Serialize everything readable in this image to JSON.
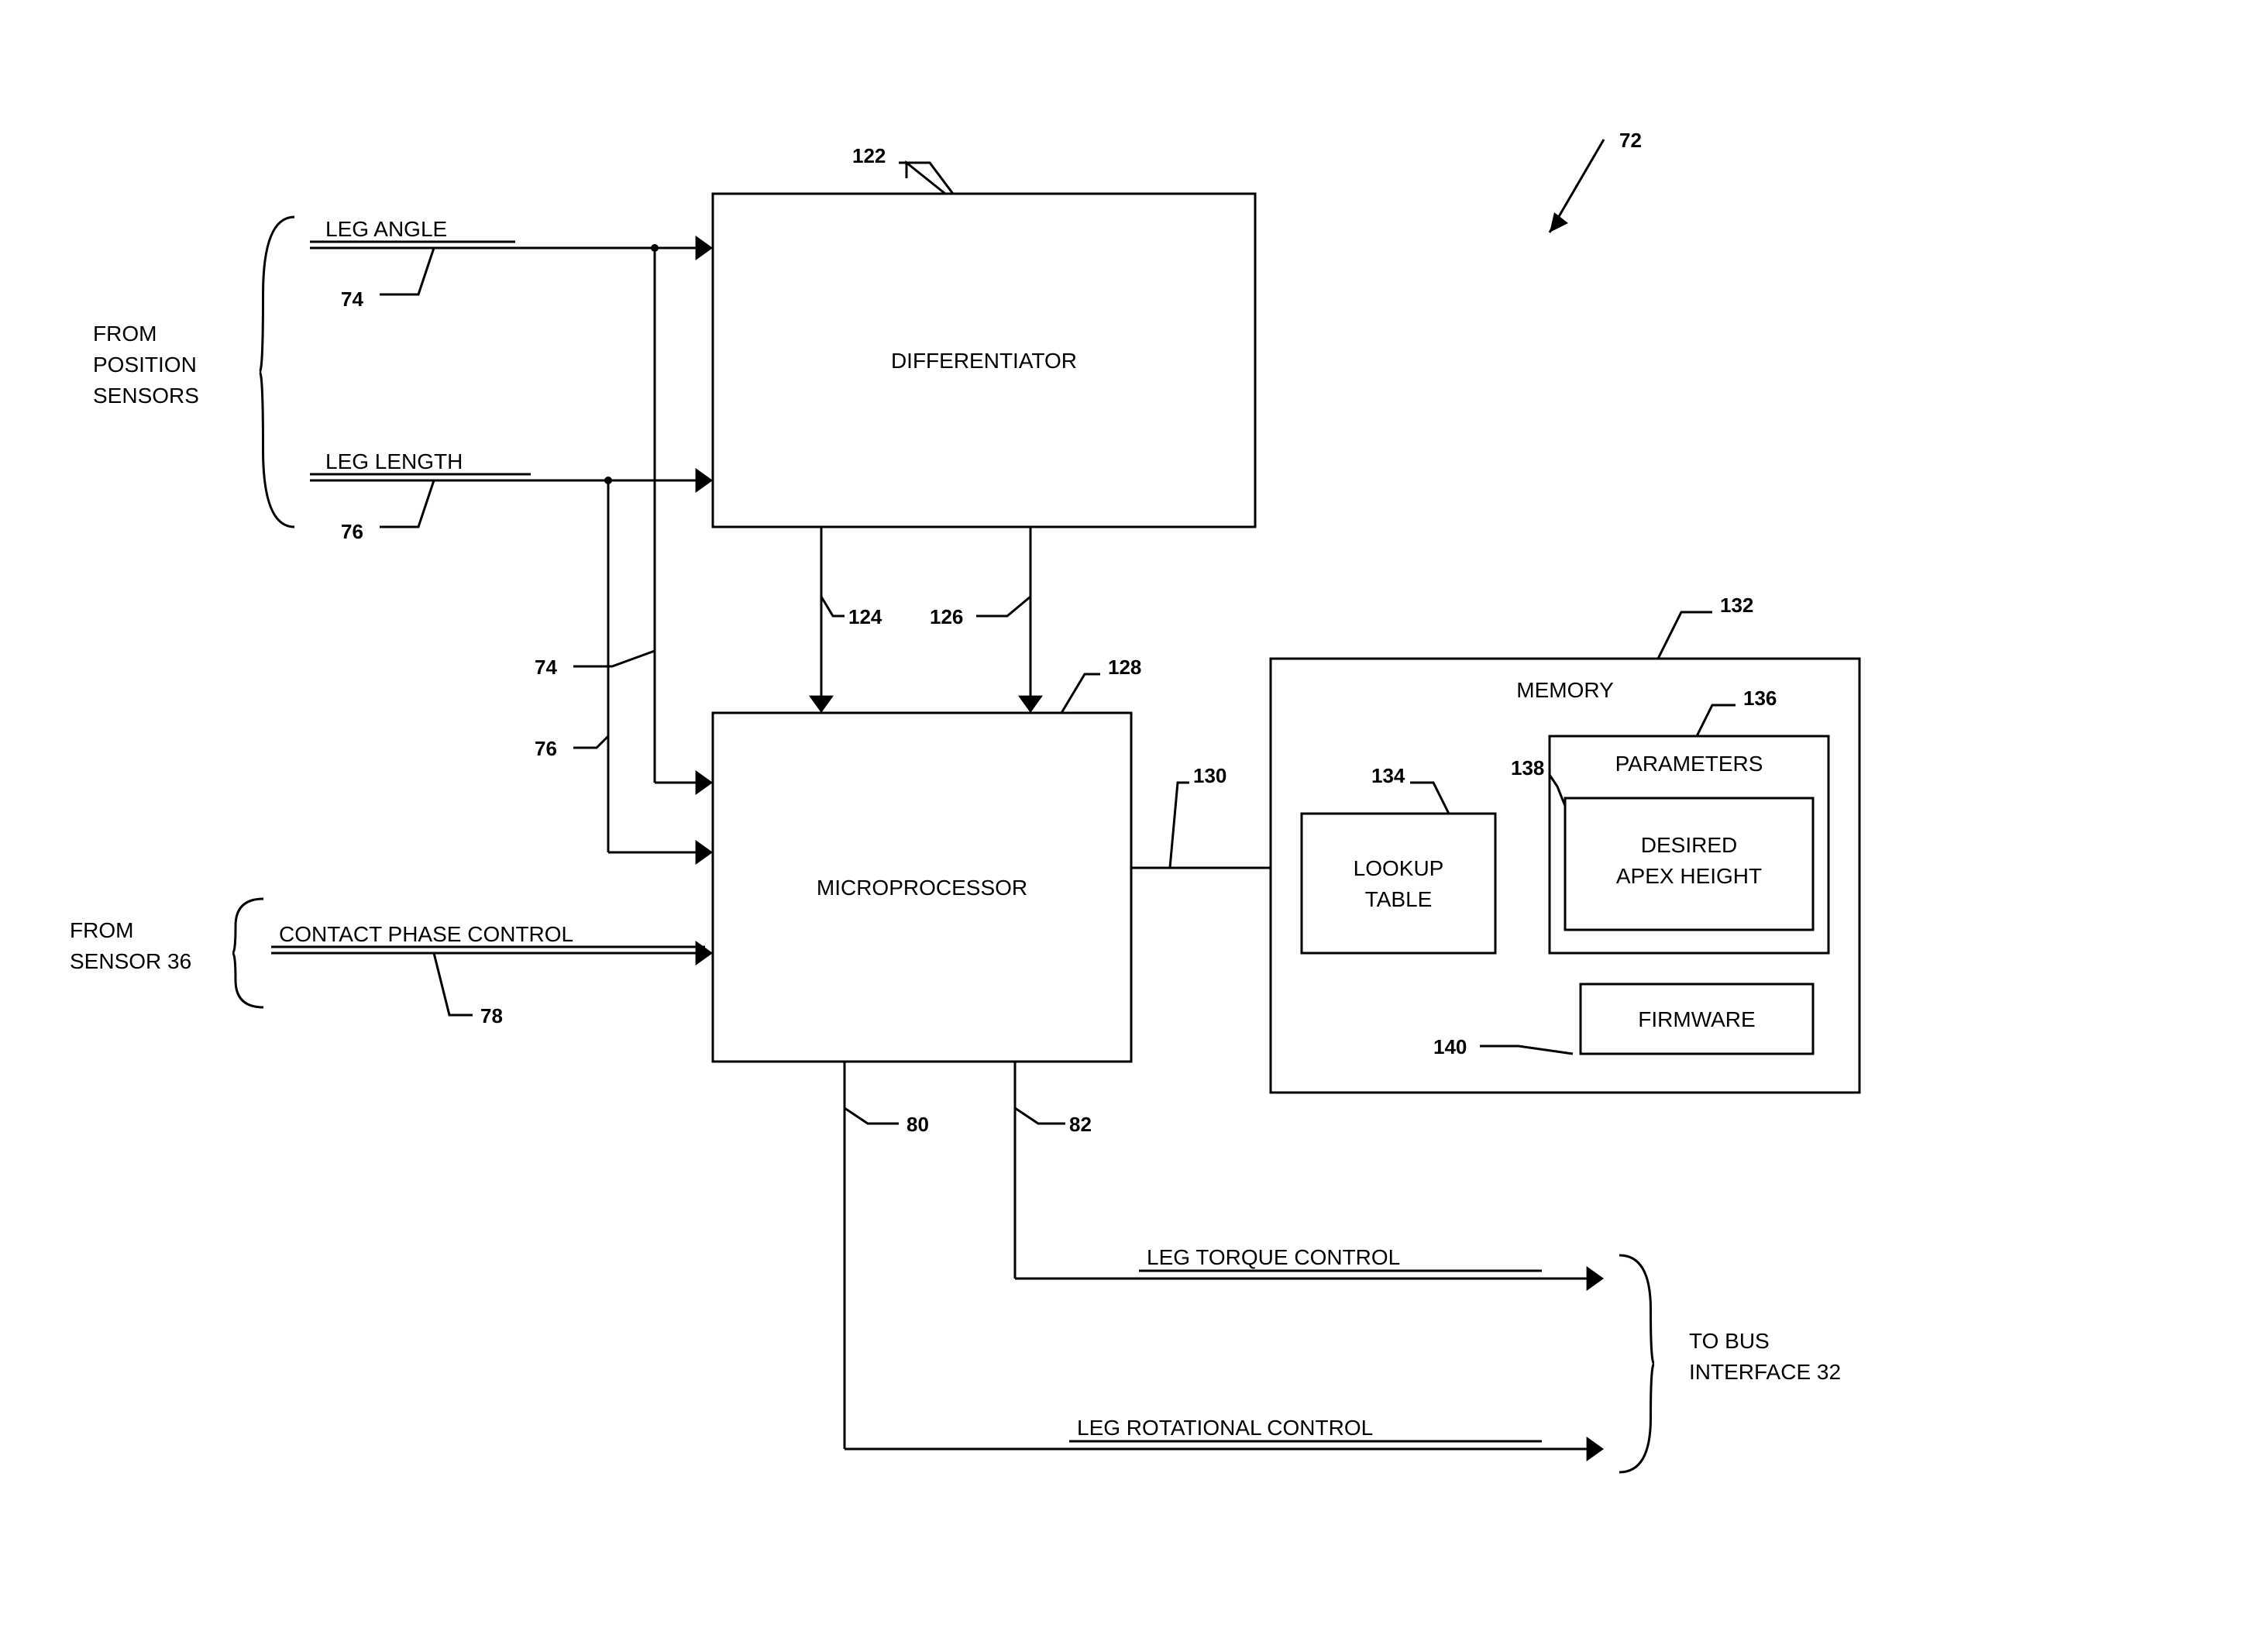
{
  "figure_ref": "72",
  "inputs_left": {
    "group1_label_line1": "FROM",
    "group1_label_line2": "POSITION",
    "group1_label_line3": "SENSORS",
    "signal1": "LEG ANGLE",
    "signal1_ref": "74",
    "signal2": "LEG LENGTH",
    "signal2_ref": "76",
    "tap_ref_a": "74",
    "tap_ref_b": "76",
    "group2_label_line1": "FROM",
    "group2_label_line2": "SENSOR 36",
    "signal3": "CONTACT PHASE CONTROL",
    "signal3_ref": "78"
  },
  "blocks": {
    "differentiator": "DIFFERENTIATOR",
    "differentiator_ref": "122",
    "diff_out1_ref": "124",
    "diff_out2_ref": "126",
    "microprocessor": "MICROPROCESSOR",
    "microprocessor_ref": "128",
    "mp_to_mem_ref": "130",
    "memory_title": "MEMORY",
    "memory_ref": "132",
    "lookup": "LOOKUP",
    "lookup2": "TABLE",
    "lookup_ref": "134",
    "parameters": "PARAMETERS",
    "parameters_ref": "136",
    "desired1": "DESIRED",
    "desired2": "APEX HEIGHT",
    "desired_ref": "138",
    "firmware": "FIRMWARE",
    "firmware_ref": "140",
    "mp_out1_ref": "80",
    "mp_out2_ref": "82"
  },
  "outputs_right": {
    "out1": "LEG TORQUE CONTROL",
    "out2": "LEG ROTATIONAL CONTROL",
    "group_label_line1": "TO BUS",
    "group_label_line2": "INTERFACE 32"
  },
  "style": {
    "stroke": "#000000",
    "stroke_width": 3,
    "bg": "#ffffff",
    "font_family": "Arial, Helvetica, sans-serif",
    "label_fontsize": 28,
    "ref_fontsize": 26,
    "block_fontsize": 28,
    "title_fontsize": 28
  },
  "geometry": {
    "viewbox_w": 2895,
    "viewbox_h": 2132
  }
}
